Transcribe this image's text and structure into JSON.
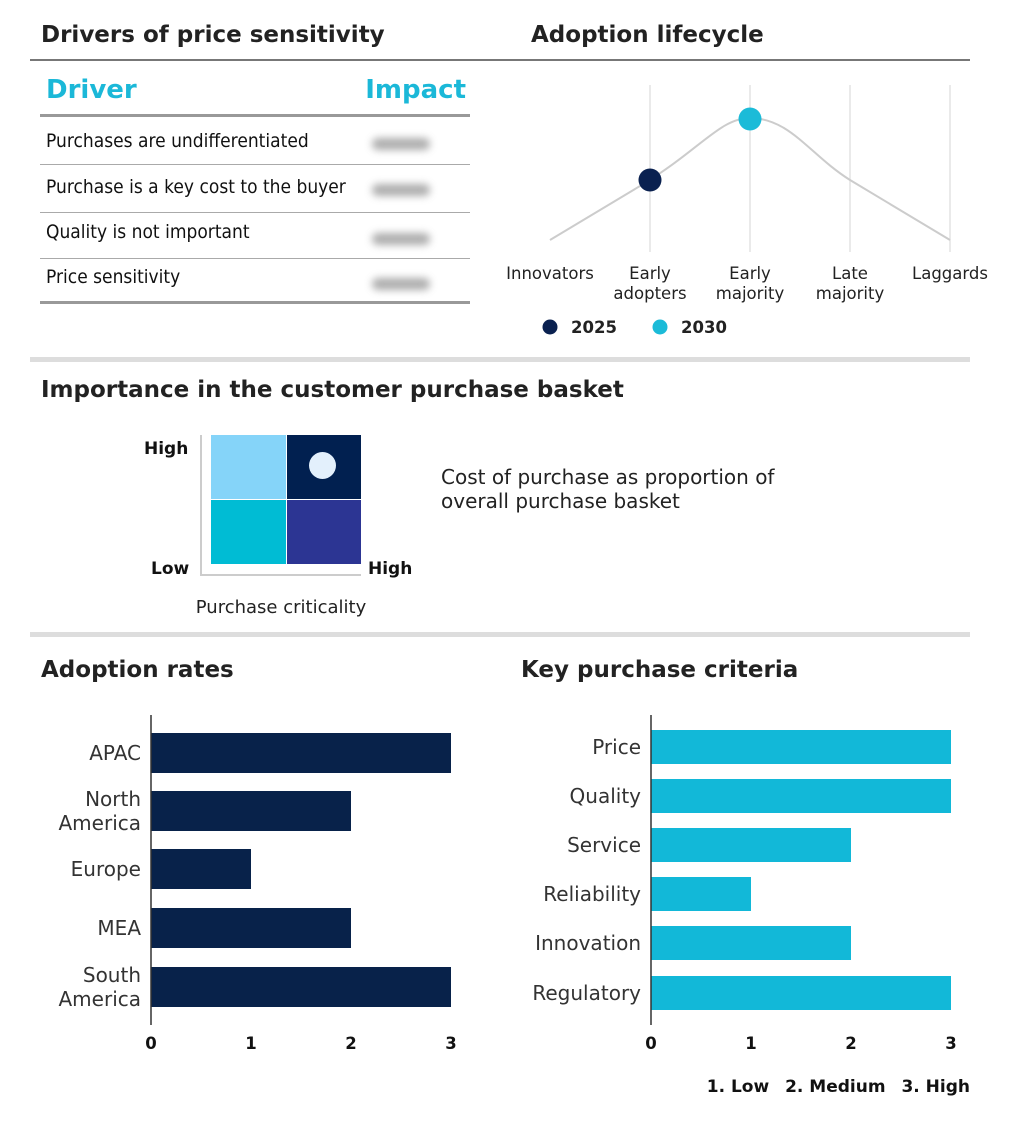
{
  "drivers": {
    "title": "Drivers of price sensitivity",
    "headers": {
      "driver": "Driver",
      "impact": "Impact"
    },
    "rows": [
      {
        "driver": "Purchases are undifferentiated",
        "impact_blurred": true
      },
      {
        "driver": "Purchase is a key cost to the buyer",
        "impact_blurred": true
      },
      {
        "driver": "Quality is not important",
        "impact_blurred": true
      },
      {
        "driver": "Price sensitivity",
        "impact_blurred": true
      }
    ],
    "accent": "#1bb8d8"
  },
  "lifecycle": {
    "title": "Adoption lifecycle",
    "stages": [
      "Innovators",
      "Early adopters",
      "Early majority",
      "Late majority",
      "Laggards"
    ],
    "stage_lines": [
      [
        "Innovators"
      ],
      [
        "Early",
        "adopters"
      ],
      [
        "Early",
        "majority"
      ],
      [
        "Late",
        "majority"
      ],
      [
        "Laggards"
      ]
    ],
    "markers": [
      {
        "label": "2025",
        "stage": "Early adopters",
        "color": "#0a2150"
      },
      {
        "label": "2030",
        "stage": "Early majority",
        "color": "#1bbbd8"
      }
    ]
  },
  "basket": {
    "title": "Importance in the customer purchase basket",
    "y_high": "High",
    "x_low": "Low",
    "x_high": "High",
    "x_label": "Purchase criticality",
    "description_lines": [
      "Cost of purchase as proportion of",
      "overall purchase basket"
    ],
    "cells": {
      "top_left": "#85d4f9",
      "top_right": "#012050",
      "bottom_left": "#00bcd4",
      "bottom_right": "#2c3593"
    },
    "selected": "top-right"
  },
  "chart_data": [
    {
      "type": "bar",
      "orientation": "horizontal",
      "title": "Adoption rates",
      "categories": [
        "APAC",
        "North America",
        "Europe",
        "MEA",
        "South America"
      ],
      "category_lines": [
        [
          "APAC"
        ],
        [
          "North",
          "America"
        ],
        [
          "Europe"
        ],
        [
          "MEA"
        ],
        [
          "South",
          "America"
        ]
      ],
      "values": [
        3,
        2,
        1,
        2,
        3
      ],
      "xlim": [
        0,
        3
      ],
      "xticks": [
        "0",
        "1",
        "2",
        "3"
      ],
      "color": "#08224a"
    },
    {
      "type": "bar",
      "orientation": "horizontal",
      "title": "Key purchase criteria",
      "categories": [
        "Price",
        "Quality",
        "Service",
        "Reliability",
        "Innovation",
        "Regulatory"
      ],
      "values": [
        3,
        3,
        2,
        1,
        2,
        3
      ],
      "xlim": [
        0,
        3
      ],
      "xticks": [
        "0",
        "1",
        "2",
        "3"
      ],
      "color": "#12b8d8",
      "legend": [
        "1. Low",
        "2. Medium",
        "3. High"
      ]
    }
  ]
}
